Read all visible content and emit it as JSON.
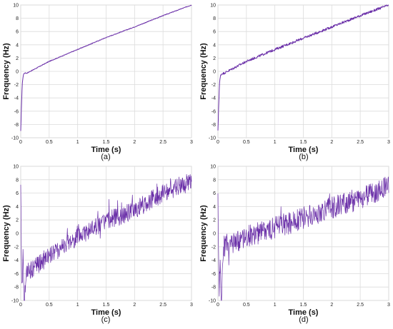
{
  "chart_data": [
    {
      "type": "line",
      "panel": "(a)",
      "xlabel": "Time  (s)",
      "ylabel": "Frequency  (Hz)",
      "xlim": [
        0,
        3
      ],
      "ylim": [
        -10,
        10
      ],
      "xticks": [
        "0",
        "0.5",
        "1",
        "1.5",
        "2",
        "2.5",
        "3"
      ],
      "yticks": [
        "-10",
        "-8",
        "-6",
        "-4",
        "-2",
        "0",
        "2",
        "4",
        "6",
        "8",
        "10"
      ],
      "grid": true,
      "color": "#6a2fa8",
      "x": [
        0,
        0.01,
        0.02,
        0.03,
        0.05,
        0.08,
        0.1,
        0.5,
        1,
        1.5,
        2,
        2.5,
        3
      ],
      "y": [
        -9,
        -6,
        -3.5,
        -1.5,
        -0.4,
        -0.2,
        -0.3,
        1.5,
        3.3,
        5.1,
        6.7,
        8.4,
        10
      ]
    },
    {
      "type": "line",
      "panel": "(b)",
      "xlabel": "Time  (s)",
      "ylabel": "Frequency  (Hz)",
      "xlim": [
        0,
        3
      ],
      "ylim": [
        -10,
        10
      ],
      "xticks": [
        "0",
        "0.5",
        "1",
        "1.5",
        "2",
        "2.5",
        "3"
      ],
      "yticks": [
        "-10",
        "-8",
        "-6",
        "-4",
        "-2",
        "0",
        "2",
        "4",
        "6",
        "8",
        "10"
      ],
      "grid": true,
      "color": "#6a2fa8",
      "x": [
        0,
        0.01,
        0.02,
        0.03,
        0.05,
        0.08,
        0.1,
        0.5,
        1,
        1.5,
        2,
        2.5,
        3
      ],
      "y": [
        -9,
        -6,
        -3.5,
        -1.5,
        -0.5,
        -0.3,
        -0.3,
        1.5,
        3.3,
        5.0,
        6.7,
        8.4,
        10
      ]
    },
    {
      "type": "line",
      "panel": "(c)",
      "xlabel": "Time  (s)",
      "ylabel": "Frequency  (Hz)",
      "xlim": [
        0,
        3
      ],
      "ylim": [
        -10,
        10
      ],
      "xticks": [
        "0",
        "0.5",
        "1",
        "1.5",
        "2",
        "2.5",
        "3"
      ],
      "yticks": [
        "-10",
        "-8",
        "-6",
        "-4",
        "-2",
        "0",
        "2",
        "4",
        "6",
        "8",
        "10"
      ],
      "grid": true,
      "color": "#6a2fa8",
      "x": [
        0,
        0.02,
        0.04,
        0.06,
        0.1,
        0.5,
        1,
        1.5,
        2,
        2.5,
        3
      ],
      "y": [
        6.5,
        -9,
        -3,
        -10,
        -6,
        -3.3,
        -0.5,
        1.8,
        3.5,
        6.0,
        7.8
      ]
    },
    {
      "type": "line",
      "panel": "(d)",
      "xlabel": "Time  (s)",
      "ylabel": "Frequency  (Hz)",
      "xlim": [
        0,
        3
      ],
      "ylim": [
        -10,
        10
      ],
      "xticks": [
        "0",
        "0.5",
        "1",
        "1.5",
        "2",
        "2.5",
        "3"
      ],
      "yticks": [
        "-10",
        "-8",
        "-6",
        "-4",
        "-2",
        "0",
        "2",
        "4",
        "6",
        "8",
        "10"
      ],
      "grid": true,
      "color": "#6a2fa8",
      "x": [
        0,
        0.02,
        0.04,
        0.06,
        0.1,
        0.5,
        1,
        1.5,
        2,
        2.5,
        3
      ],
      "y": [
        5,
        -9,
        -4,
        -10,
        -2,
        -0.5,
        0.8,
        2.3,
        3.8,
        5.2,
        7
      ]
    }
  ]
}
